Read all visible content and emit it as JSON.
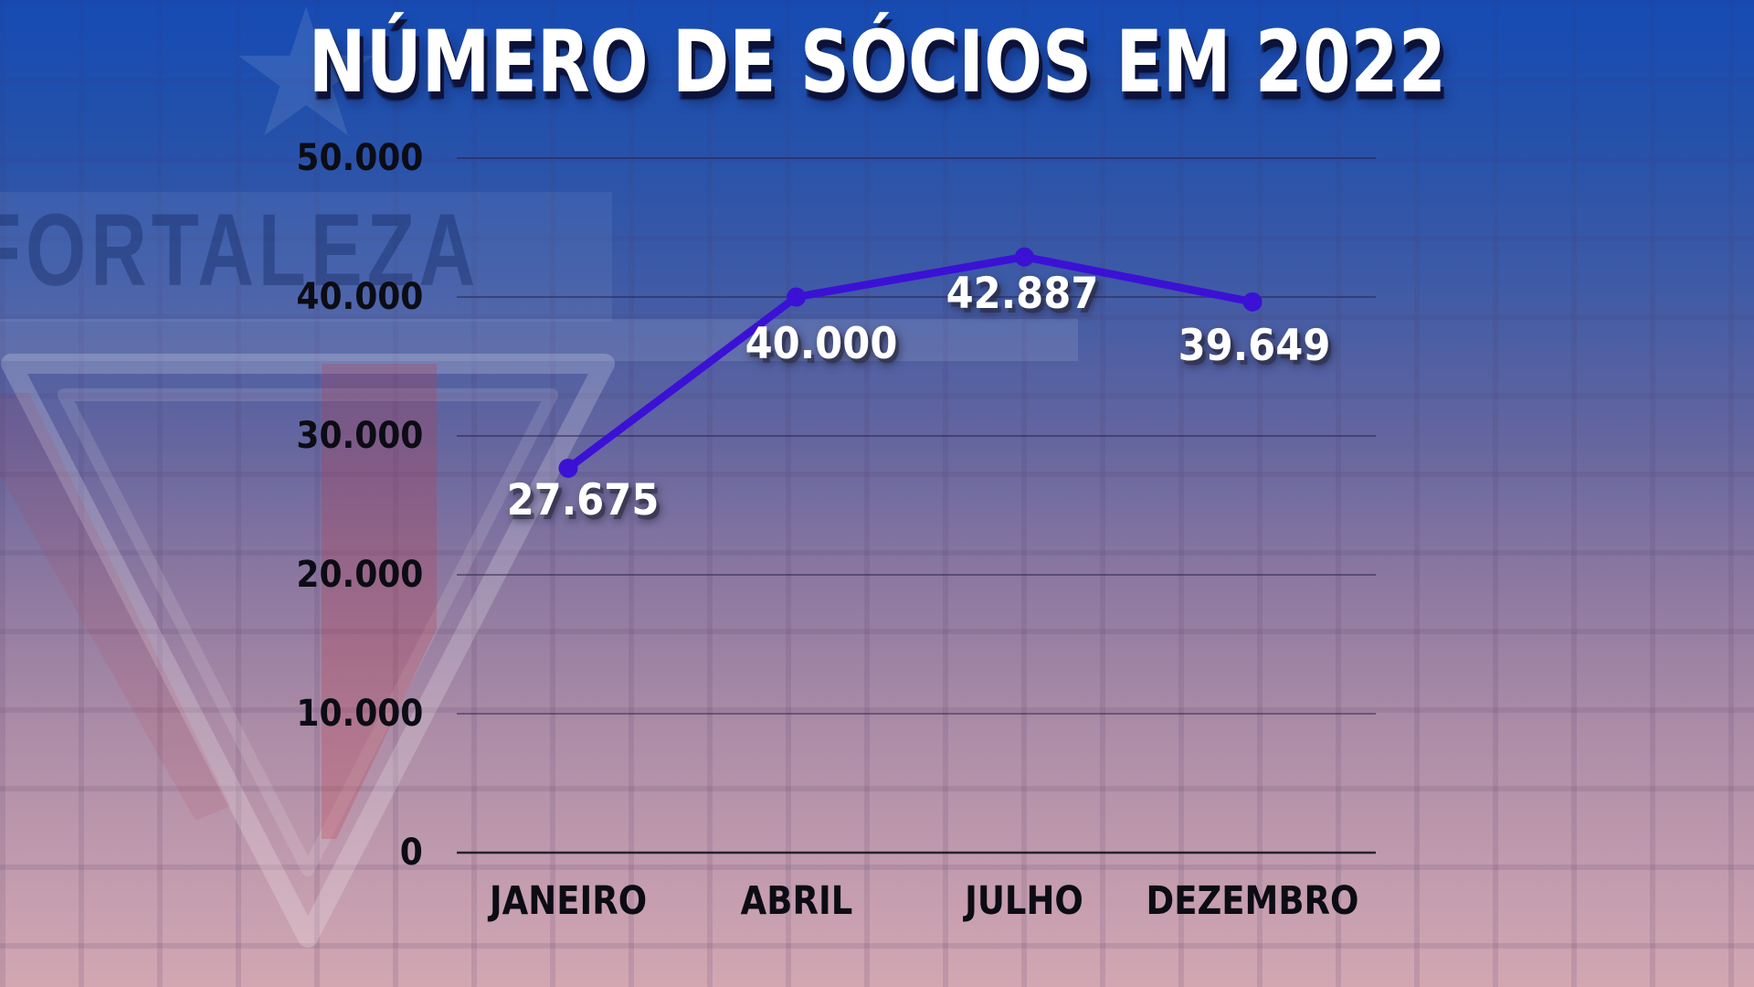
{
  "title": "NÚMERO DE SÓCIOS EM 2022",
  "watermark": {
    "club": "FORTALEZA"
  },
  "colors": {
    "line": "#3b11d6",
    "title_text": "#ffffff",
    "axis_text": "#0c0c14",
    "background_top": "#164bb4",
    "background_bottom": "#d2a7b2"
  },
  "chart_data": {
    "type": "line",
    "title": "NÚMERO DE SÓCIOS EM 2022",
    "categories": [
      "JANEIRO",
      "ABRIL",
      "JULHO",
      "DEZEMBRO"
    ],
    "series": [
      {
        "name": "Sócios",
        "values": [
          27675,
          40000,
          42887,
          39649
        ],
        "labels": [
          "27.675",
          "40.000",
          "42.887",
          "39.649"
        ]
      }
    ],
    "y_ticks": [
      "50.000",
      "40.000",
      "30.000",
      "20.000",
      "10.000",
      "0"
    ],
    "y_tick_values": [
      50000,
      40000,
      30000,
      20000,
      10000,
      0
    ],
    "ylim": [
      0,
      50000
    ],
    "xlabel": "",
    "ylabel": "",
    "grid": true,
    "legend": false
  }
}
